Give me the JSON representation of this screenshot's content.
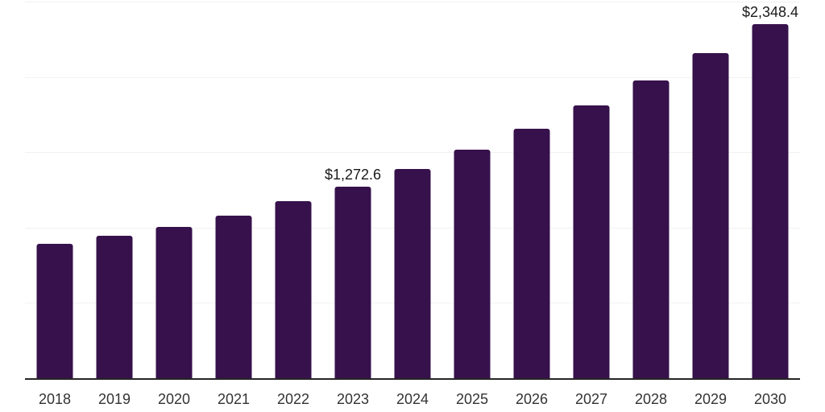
{
  "chart_data": {
    "type": "bar",
    "title": "",
    "xlabel": "",
    "ylabel": "",
    "categories": [
      "2018",
      "2019",
      "2020",
      "2021",
      "2022",
      "2023",
      "2024",
      "2025",
      "2026",
      "2027",
      "2028",
      "2029",
      "2030"
    ],
    "values": [
      890,
      946,
      1005,
      1080,
      1175,
      1272.6,
      1390,
      1516,
      1656,
      1811,
      1976,
      2156,
      2348.4
    ],
    "value_labels": [
      "",
      "",
      "",
      "",
      "",
      "$1,272.6",
      "",
      "",
      "",
      "",
      "",
      "",
      "$2,348.4"
    ],
    "ylim": [
      0,
      2500
    ],
    "grid": true,
    "gridline_values": [
      500,
      1000,
      1500,
      2000,
      2500
    ],
    "legend": "none",
    "colors": {
      "bar": "#36114b",
      "axis_line": "#262626",
      "gridline": "#f2f2f2",
      "value_label_text": "#1a1a1a",
      "tick_label_text": "#333333",
      "background": "#ffffff"
    }
  }
}
